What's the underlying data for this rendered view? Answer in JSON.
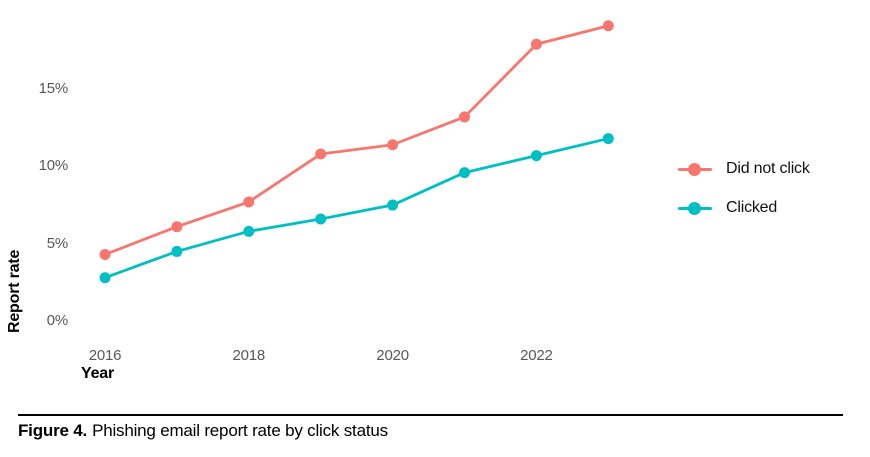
{
  "figure": {
    "caption_label": "Figure 4.",
    "caption_text": "Phishing email report rate by click status"
  },
  "chart_data": {
    "type": "line",
    "title": "",
    "xlabel": "Year",
    "ylabel": "Report rate",
    "x": [
      2016,
      2017,
      2018,
      2019,
      2020,
      2021,
      2022,
      2023
    ],
    "series": [
      {
        "name": "Did not click",
        "color": "#F8766D",
        "values": [
          4.3,
          6.1,
          7.7,
          10.8,
          11.4,
          13.2,
          17.9,
          19.1
        ]
      },
      {
        "name": "Clicked",
        "color": "#00BFC4",
        "values": [
          2.8,
          4.5,
          5.8,
          6.6,
          7.5,
          9.6,
          10.7,
          11.8
        ]
      }
    ],
    "xticks": [
      {
        "value": 2016,
        "label": "2016"
      },
      {
        "value": 2018,
        "label": "2018"
      },
      {
        "value": 2020,
        "label": "2020"
      },
      {
        "value": 2022,
        "label": "2022"
      }
    ],
    "yticks": [
      {
        "value": 0,
        "label": "0%"
      },
      {
        "value": 5,
        "label": "5%"
      },
      {
        "value": 10,
        "label": "10%"
      },
      {
        "value": 15,
        "label": "15%"
      }
    ],
    "ylim": [
      0,
      20
    ],
    "grid": false,
    "marker": "circle",
    "legend_position": "right",
    "tick_color": "#58585a"
  }
}
